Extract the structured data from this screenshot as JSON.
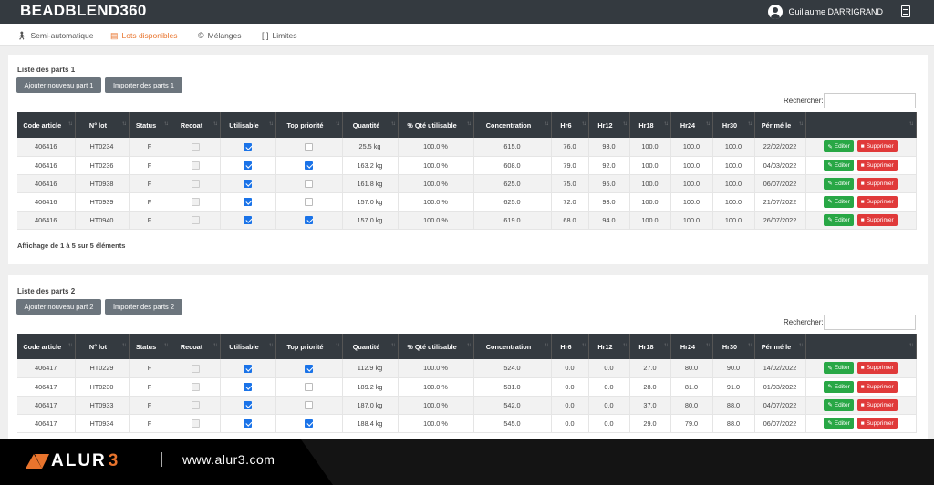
{
  "app": {
    "brand": "BEADBLEND360"
  },
  "user": {
    "name": "Guillaume DARRIGRAND"
  },
  "nav": [
    {
      "label": "Semi-automatique",
      "icon": "person-walking-icon"
    },
    {
      "label": "Lots disponibles",
      "icon": "list-alt-icon",
      "active": true
    },
    {
      "label": "Mélanges",
      "icon": "copyright-icon"
    },
    {
      "label": "Limites",
      "icon": "bracket-icon"
    }
  ],
  "columns": [
    "Code article",
    "N° lot",
    "Status",
    "Recoat",
    "Utilisable",
    "Top priorité",
    "Quantité",
    "% Qté utilisable",
    "Concentration",
    "Hr6",
    "Hr12",
    "Hr18",
    "Hr24",
    "Hr30",
    "Périmé le",
    ""
  ],
  "search_label": "Rechercher:",
  "actions": {
    "edit": "Editer",
    "delete": "Supprimer"
  },
  "part1": {
    "title": "Liste des parts 1",
    "add_button": "Ajouter nouveau part 1",
    "import_button": "Importer des parts 1",
    "info": "Affichage de 1 à 5 sur 5 éléments",
    "rows": [
      {
        "code": "406416",
        "lot": "HT0234",
        "status": "F",
        "recoat": false,
        "utilisable": true,
        "top": false,
        "qty": "25.5 kg",
        "pct": "100.0 %",
        "conc": "615.0",
        "hr6": "76.0",
        "hr12": "93.0",
        "hr18": "100.0",
        "hr24": "100.0",
        "hr30": "100.0",
        "date": "22/02/2022"
      },
      {
        "code": "406416",
        "lot": "HT0236",
        "status": "F",
        "recoat": false,
        "utilisable": true,
        "top": true,
        "qty": "163.2 kg",
        "pct": "100.0 %",
        "conc": "608.0",
        "hr6": "79.0",
        "hr12": "92.0",
        "hr18": "100.0",
        "hr24": "100.0",
        "hr30": "100.0",
        "date": "04/03/2022"
      },
      {
        "code": "406416",
        "lot": "HT0938",
        "status": "F",
        "recoat": false,
        "utilisable": true,
        "top": false,
        "qty": "161.8 kg",
        "pct": "100.0 %",
        "conc": "625.0",
        "hr6": "75.0",
        "hr12": "95.0",
        "hr18": "100.0",
        "hr24": "100.0",
        "hr30": "100.0",
        "date": "06/07/2022"
      },
      {
        "code": "406416",
        "lot": "HT0939",
        "status": "F",
        "recoat": false,
        "utilisable": true,
        "top": false,
        "qty": "157.0 kg",
        "pct": "100.0 %",
        "conc": "625.0",
        "hr6": "72.0",
        "hr12": "93.0",
        "hr18": "100.0",
        "hr24": "100.0",
        "hr30": "100.0",
        "date": "21/07/2022"
      },
      {
        "code": "406416",
        "lot": "HT0940",
        "status": "F",
        "recoat": false,
        "utilisable": true,
        "top": true,
        "qty": "157.0 kg",
        "pct": "100.0 %",
        "conc": "619.0",
        "hr6": "68.0",
        "hr12": "94.0",
        "hr18": "100.0",
        "hr24": "100.0",
        "hr30": "100.0",
        "date": "26/07/2022"
      }
    ]
  },
  "part2": {
    "title": "Liste des parts 2",
    "add_button": "Ajouter nouveau part 2",
    "import_button": "Importer des parts 2",
    "rows": [
      {
        "code": "406417",
        "lot": "HT0229",
        "status": "F",
        "recoat": false,
        "utilisable": true,
        "top": true,
        "qty": "112.9 kg",
        "pct": "100.0 %",
        "conc": "524.0",
        "hr6": "0.0",
        "hr12": "0.0",
        "hr18": "27.0",
        "hr24": "80.0",
        "hr30": "90.0",
        "date": "14/02/2022"
      },
      {
        "code": "406417",
        "lot": "HT0230",
        "status": "F",
        "recoat": false,
        "utilisable": true,
        "top": false,
        "qty": "189.2 kg",
        "pct": "100.0 %",
        "conc": "531.0",
        "hr6": "0.0",
        "hr12": "0.0",
        "hr18": "28.0",
        "hr24": "81.0",
        "hr30": "91.0",
        "date": "01/03/2022"
      },
      {
        "code": "406417",
        "lot": "HT0933",
        "status": "F",
        "recoat": false,
        "utilisable": true,
        "top": false,
        "qty": "187.0 kg",
        "pct": "100.0 %",
        "conc": "542.0",
        "hr6": "0.0",
        "hr12": "0.0",
        "hr18": "37.0",
        "hr24": "80.0",
        "hr30": "88.0",
        "date": "04/07/2022"
      },
      {
        "code": "406417",
        "lot": "HT0934",
        "status": "F",
        "recoat": false,
        "utilisable": true,
        "top": true,
        "qty": "188.4 kg",
        "pct": "100.0 %",
        "conc": "545.0",
        "hr6": "0.0",
        "hr12": "0.0",
        "hr18": "29.0",
        "hr24": "79.0",
        "hr30": "88.0",
        "date": "06/07/2022"
      }
    ]
  },
  "footer": {
    "logo_main": "ALUR",
    "logo_accent": "3",
    "url": "www.alur3.com"
  },
  "colors": {
    "topbar": "#343a40",
    "accent": "#e8742d",
    "edit": "#28a745",
    "delete": "#e03a3a",
    "checkbox": "#1a73e8"
  }
}
